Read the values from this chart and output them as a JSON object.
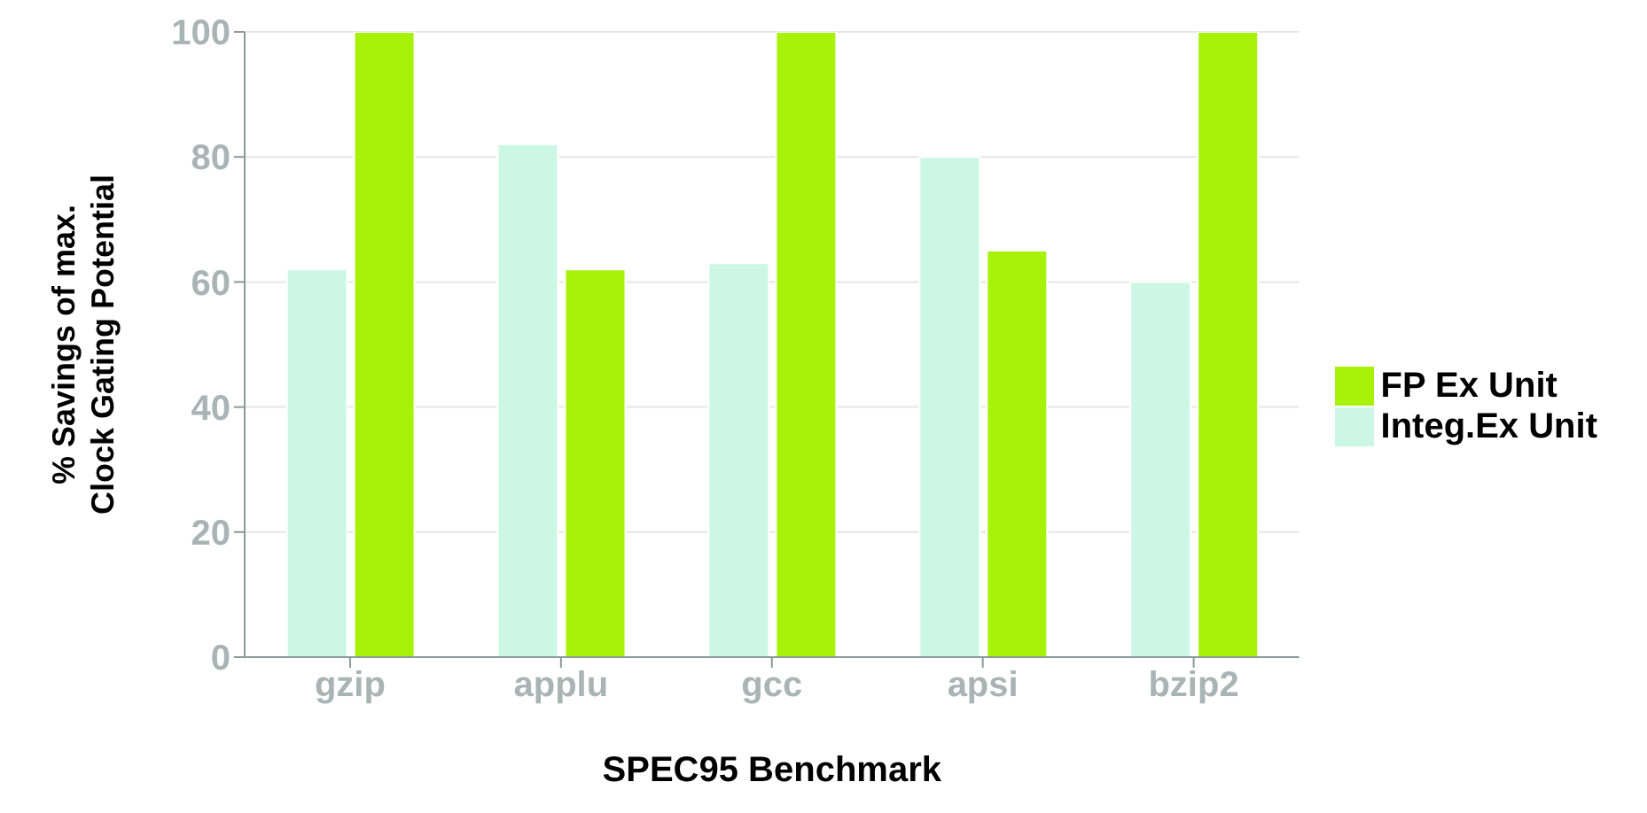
{
  "chart_data": {
    "type": "bar",
    "xlabel": "SPEC95 Benchmark",
    "ylabel": "% Savings of max.\nClock Gating Potential",
    "categories": [
      "gzip",
      "applu",
      "gcc",
      "apsi",
      "bzip2"
    ],
    "series": [
      {
        "name": "Integ.Ex Unit",
        "color": "#ccf7e6",
        "values": [
          62,
          82,
          63,
          80,
          60
        ]
      },
      {
        "name": "FP Ex Unit",
        "color": "#a8f20a",
        "values": [
          100,
          62,
          100,
          65,
          100
        ]
      }
    ],
    "ylim": [
      0,
      100
    ],
    "yticks": [
      0,
      20,
      40,
      60,
      80,
      100
    ],
    "grid": "y",
    "legend": "right"
  }
}
